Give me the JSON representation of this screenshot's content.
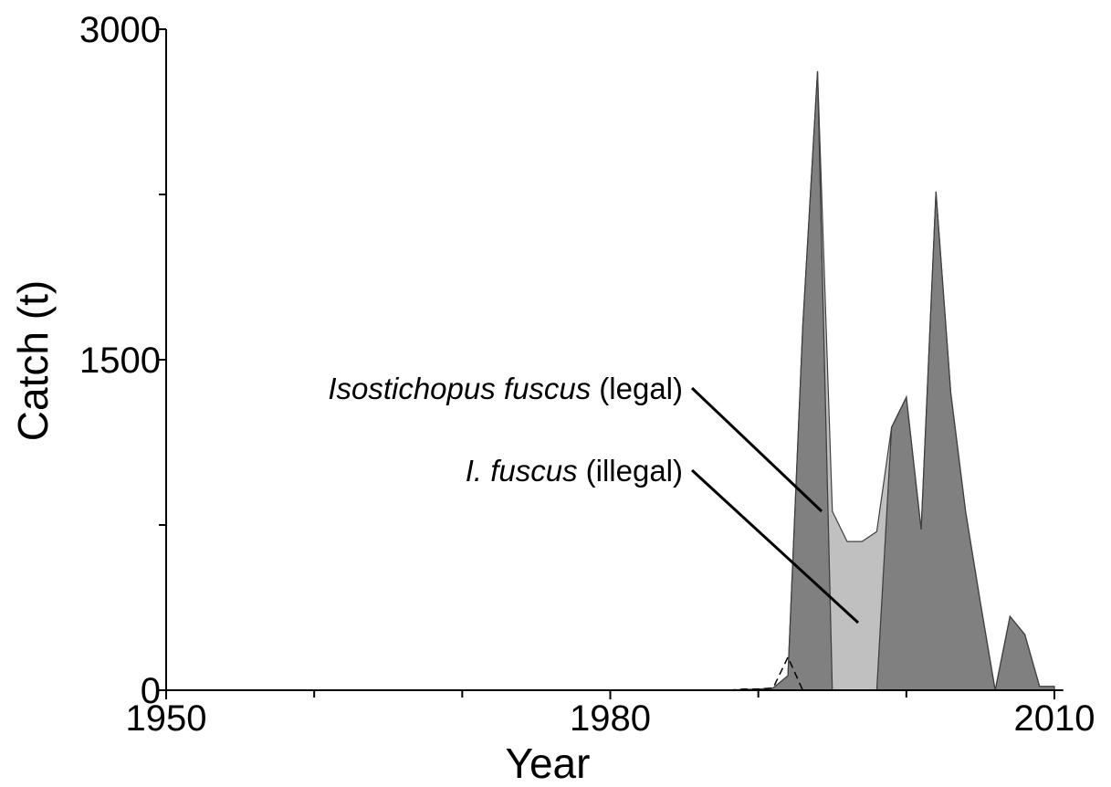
{
  "chart_data": {
    "type": "stacked_area",
    "xlabel": "Year",
    "ylabel": "Catch (t)",
    "xlim": [
      1950,
      2010.6
    ],
    "ylim": [
      0,
      3000
    ],
    "xticks": [
      1950,
      1980,
      2010
    ],
    "xminor_ticks": [
      1960,
      1970,
      1990,
      2000
    ],
    "yticks": [
      0,
      1500,
      3000
    ],
    "yminor_ticks": [
      750,
      2250
    ],
    "x": [
      1988,
      1989,
      1990,
      1991,
      1992,
      1993,
      1994,
      1995,
      1996,
      1997,
      1998,
      1999,
      2000,
      2001,
      2002,
      2003,
      2004,
      2005,
      2006,
      2007,
      2008,
      2009,
      2010
    ],
    "series": [
      {
        "color": "#808080",
        "values": [
          0,
          3,
          5,
          10,
          66,
          1650,
          2810,
          0,
          0,
          0,
          0,
          1193,
          1330,
          730,
          2263,
          1350,
          812,
          398,
          0,
          335,
          253,
          17,
          17
        ]
      },
      {
        "color": "#c0c0c0",
        "values": [
          0,
          0,
          0,
          0,
          0,
          0,
          0,
          812,
          675,
          675,
          720,
          0,
          0,
          0,
          0,
          0,
          0,
          0,
          0,
          0,
          0,
          0,
          0
        ]
      }
    ],
    "dashed_line": {
      "color": "#000000",
      "x": [
        1988,
        1989,
        1990,
        1991,
        1992,
        1993
      ],
      "values": [
        0,
        5,
        5,
        10,
        150,
        0
      ]
    },
    "annotations": [
      {
        "italic": "Isostichopus fuscus",
        "text": "(legal)"
      },
      {
        "italic": "I. fuscus",
        "text": "(illegal)"
      }
    ]
  }
}
